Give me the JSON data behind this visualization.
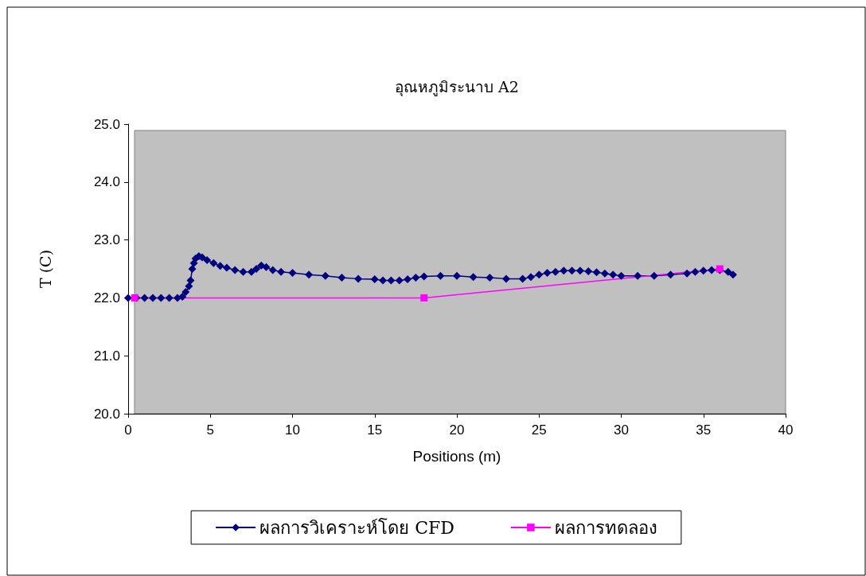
{
  "chart_data": {
    "type": "line",
    "title": "อุณหภูมิระนาบ A2",
    "xlabel": "Positions (m)",
    "ylabel": "T (C)",
    "xlim": [
      0,
      40
    ],
    "xticks": [
      0,
      5,
      10,
      15,
      20,
      25,
      30,
      35,
      40
    ],
    "ylim": [
      20,
      25
    ],
    "yticks": [
      {
        "value": 20,
        "label": "20.0"
      },
      {
        "value": 21,
        "label": "21.0"
      },
      {
        "value": 22,
        "label": "22.0"
      },
      {
        "value": 23,
        "label": "23.0"
      },
      {
        "value": 24,
        "label": "24.0"
      },
      {
        "value": 25,
        "label": "25.0"
      }
    ],
    "grid": false,
    "legend": "bottom",
    "series": [
      {
        "name": "ผลการวิเคราะห์โดย CFD",
        "color": "#000080",
        "marker": "diamond",
        "x": [
          0,
          0.5,
          1,
          1.5,
          2,
          2.5,
          3,
          3.3,
          3.5,
          3.7,
          3.8,
          3.9,
          4.0,
          4.1,
          4.3,
          4.5,
          4.8,
          5.2,
          5.6,
          6.0,
          6.5,
          7.0,
          7.5,
          7.8,
          8.1,
          8.4,
          8.8,
          9.3,
          10,
          11,
          12,
          13,
          14,
          15,
          15.5,
          16,
          16.5,
          17,
          17.5,
          18,
          19,
          20,
          21,
          22,
          23,
          24,
          24.5,
          25,
          25.5,
          26,
          26.5,
          27,
          27.5,
          28,
          28.5,
          29,
          29.5,
          30,
          31,
          32,
          33,
          34,
          34.5,
          35,
          35.5,
          36,
          36.5,
          36.8
        ],
        "values": [
          22.0,
          22.0,
          22.0,
          22.0,
          22.0,
          22.0,
          22.0,
          22.02,
          22.1,
          22.2,
          22.3,
          22.5,
          22.6,
          22.68,
          22.72,
          22.7,
          22.65,
          22.6,
          22.55,
          22.52,
          22.48,
          22.45,
          22.45,
          22.5,
          22.56,
          22.53,
          22.48,
          22.45,
          22.43,
          22.4,
          22.38,
          22.35,
          22.33,
          22.32,
          22.3,
          22.3,
          22.3,
          22.32,
          22.35,
          22.37,
          22.38,
          22.38,
          22.36,
          22.35,
          22.33,
          22.33,
          22.36,
          22.4,
          22.43,
          22.45,
          22.47,
          22.47,
          22.47,
          22.46,
          22.44,
          22.42,
          22.4,
          22.38,
          22.38,
          22.38,
          22.4,
          22.42,
          22.45,
          22.47,
          22.48,
          22.48,
          22.45,
          22.4
        ]
      },
      {
        "name": "ผลการทดลอง",
        "color": "#ff00ff",
        "marker": "square",
        "x": [
          0.4,
          18,
          36
        ],
        "values": [
          22.0,
          22.0,
          22.5
        ]
      }
    ]
  }
}
